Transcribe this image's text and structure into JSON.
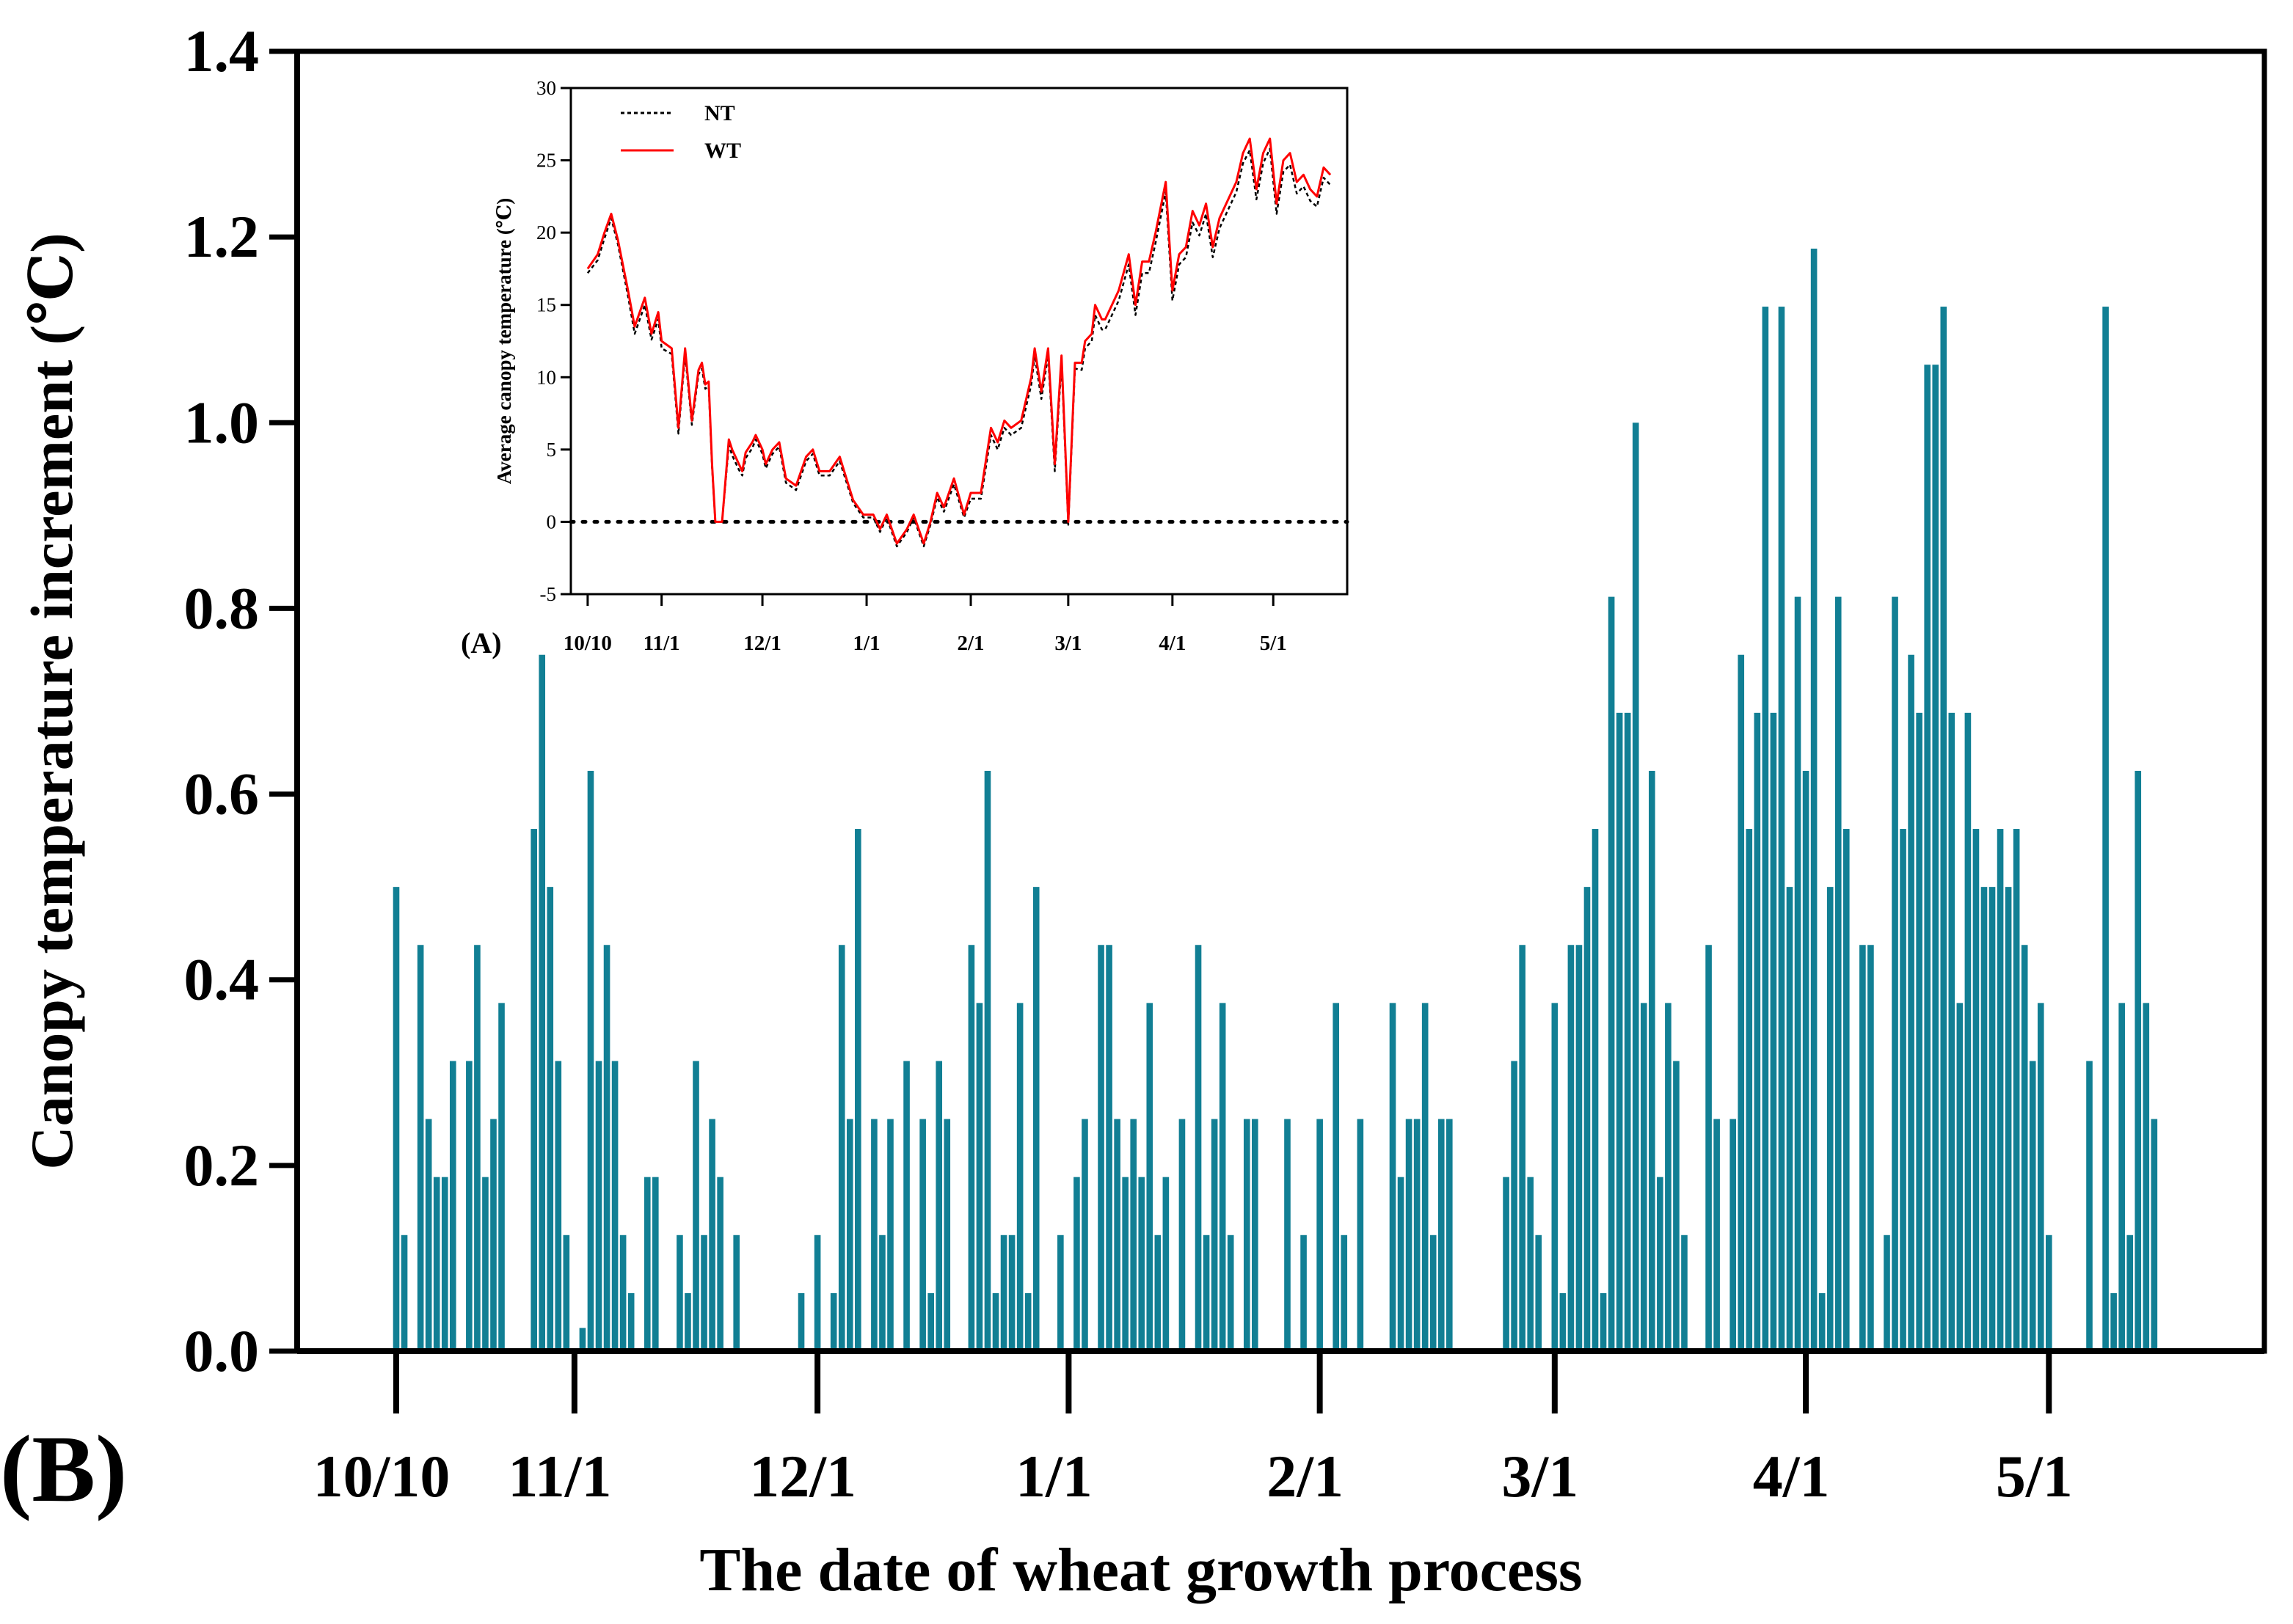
{
  "colors": {
    "bar": "#117f94",
    "nt_line": "#000000",
    "wt_line": "#ff0000",
    "axis": "#000000"
  },
  "chart_data": [
    {
      "id": "B",
      "panel_label": "(B)",
      "type": "bar",
      "title": "",
      "xlabel": "The date of wheat growth process",
      "ylabel": "Canopy temperature increment (℃)",
      "ylim": [
        0,
        1.4
      ],
      "yticks": [
        "0.0",
        "0.2",
        "0.4",
        "0.6",
        "0.8",
        "1.0",
        "1.2",
        "1.4"
      ],
      "ytick_values": [
        0,
        0.2,
        0.4,
        0.6,
        0.8,
        1.0,
        1.2,
        1.4
      ],
      "x_day_range": [
        0,
        221
      ],
      "x_ticks": [
        {
          "label": "10/10",
          "day": 0
        },
        {
          "label": "11/1",
          "day": 22
        },
        {
          "label": "12/1",
          "day": 52
        },
        {
          "label": "1/1",
          "day": 83
        },
        {
          "label": "2/1",
          "day": 114
        },
        {
          "label": "3/1",
          "day": 143
        },
        {
          "label": "4/1",
          "day": 174
        },
        {
          "label": "5/1",
          "day": 204
        }
      ],
      "start_day": 0,
      "values": [
        0.5,
        0.125,
        0,
        0.4375,
        0.25,
        0.1875,
        0.1875,
        0.3125,
        0,
        0.3125,
        0.4375,
        0.1875,
        0.25,
        0.375,
        0,
        0,
        0,
        0.5625,
        0.75,
        0.5,
        0.3125,
        0.125,
        0,
        0.025,
        0.625,
        0.3125,
        0.4375,
        0.3125,
        0.125,
        0.0625,
        0,
        0.1875,
        0.1875,
        0,
        0,
        0.125,
        0.0625,
        0.3125,
        0.125,
        0.25,
        0.1875,
        0,
        0.125,
        0,
        0,
        0,
        0,
        0,
        0,
        0,
        0.0625,
        0,
        0.125,
        0,
        0.0625,
        0.4375,
        0.25,
        0.5625,
        0,
        0.25,
        0.125,
        0.25,
        0,
        0.3125,
        0,
        0.25,
        0.0625,
        0.3125,
        0.25,
        0,
        0,
        0.4375,
        0.375,
        0.625,
        0.0625,
        0.125,
        0.125,
        0.375,
        0.0625,
        0.5,
        0,
        0,
        0.125,
        0,
        0.1875,
        0.25,
        0,
        0.4375,
        0.4375,
        0.25,
        0.1875,
        0.25,
        0.1875,
        0.375,
        0.125,
        0.1875,
        0,
        0.25,
        0,
        0.4375,
        0.125,
        0.25,
        0.375,
        0.125,
        0,
        0.25,
        0.25,
        0,
        0,
        0,
        0.25,
        0,
        0.125,
        0,
        0.25,
        0,
        0.375,
        0.125,
        0,
        0.25,
        0,
        0,
        0,
        0.375,
        0.1875,
        0.25,
        0.25,
        0.375,
        0.125,
        0.25,
        0.25,
        0,
        0,
        0,
        0,
        0,
        0,
        0.1875,
        0.3125,
        0.4375,
        0.1875,
        0.125,
        0,
        0.375,
        0.0625,
        0.4375,
        0.4375,
        0.5,
        0.5625,
        0.0625,
        0.8125,
        0.6875,
        0.6875,
        1.0,
        0.375,
        0.625,
        0.1875,
        0.375,
        0.3125,
        0.125,
        0,
        0,
        0.4375,
        0.25,
        0,
        0.25,
        0.75,
        0.5625,
        0.6875,
        1.125,
        0.6875,
        1.125,
        0.5,
        0.8125,
        0.625,
        1.1875,
        0.0625,
        0.5,
        0.8125,
        0.5625,
        0,
        0.4375,
        0.4375,
        0,
        0.125,
        0.8125,
        0.5625,
        0.75,
        0.6875,
        1.0625,
        1.0625,
        1.125,
        0.6875,
        0.375,
        0.6875,
        0.5625,
        0.5,
        0.5,
        0.5625,
        0.5,
        0.5625,
        0.4375,
        0.3125,
        0.375,
        0.125,
        0,
        0,
        0,
        0,
        0.3125,
        0,
        1.125,
        0.0625,
        0.375,
        0.125,
        0.625,
        0.375,
        0.25
      ]
    },
    {
      "id": "A",
      "panel_label": "(A)",
      "type": "line",
      "title": "",
      "xlabel": "",
      "ylabel": "Average canopy temperature (℃)",
      "ylim": [
        -5,
        30
      ],
      "yticks": [
        "-5",
        "0",
        "5",
        "10",
        "15",
        "20",
        "25",
        "30"
      ],
      "ytick_values": [
        -5,
        0,
        5,
        10,
        15,
        20,
        25,
        30
      ],
      "x_day_range": [
        -5,
        226
      ],
      "x_ticks": [
        {
          "label": "10/10",
          "day": 0
        },
        {
          "label": "11/1",
          "day": 22
        },
        {
          "label": "12/1",
          "day": 52
        },
        {
          "label": "1/1",
          "day": 83
        },
        {
          "label": "2/1",
          "day": 114
        },
        {
          "label": "3/1",
          "day": 143
        },
        {
          "label": "4/1",
          "day": 174
        },
        {
          "label": "5/1",
          "day": 204
        }
      ],
      "reference_line": 0,
      "legend": [
        "NT",
        "WT"
      ],
      "legend_position": "top-left",
      "series": [
        {
          "name": "WT",
          "x": [
            0,
            3,
            5,
            7,
            9,
            12,
            14,
            17,
            19,
            21,
            22,
            25,
            27,
            29,
            31,
            33,
            34,
            35,
            36,
            37,
            38,
            40,
            42,
            43,
            45,
            46,
            47,
            49,
            50,
            52,
            53,
            55,
            57,
            59,
            62,
            65,
            67,
            69,
            72,
            75,
            79,
            82,
            85,
            87,
            89,
            92,
            95,
            97,
            100,
            102,
            104,
            106,
            109,
            112,
            114,
            117,
            120,
            122,
            124,
            126,
            129,
            132,
            133,
            135,
            137,
            139,
            141,
            143,
            145,
            147,
            148,
            150,
            151,
            153,
            154,
            156,
            158,
            161,
            163,
            165,
            167,
            169,
            172,
            174,
            176,
            178,
            180,
            182,
            184,
            186,
            188,
            190,
            193,
            195,
            197,
            199,
            201,
            203,
            205,
            207,
            209,
            211,
            213,
            215,
            217,
            219,
            221
          ],
          "values": [
            17.5,
            18.5,
            20,
            21.3,
            19.5,
            16,
            13.5,
            15.5,
            13,
            14.5,
            12.5,
            12,
            6.5,
            12,
            7,
            10.5,
            11,
            9.5,
            9.7,
            4,
            0,
            0,
            5.7,
            5,
            4,
            3.5,
            4.8,
            5.5,
            6,
            5,
            4,
            5,
            5.5,
            3,
            2.5,
            4.5,
            5,
            3.5,
            3.5,
            4.5,
            1.5,
            0.5,
            0.5,
            -0.5,
            0.5,
            -1.5,
            -0.5,
            0.5,
            -1.5,
            0,
            2,
            1,
            3,
            0.5,
            2,
            2,
            6.5,
            5.5,
            7,
            6.5,
            7,
            10,
            12,
            9,
            12,
            4,
            11.5,
            0,
            11,
            11,
            12.5,
            13,
            15,
            14,
            14,
            15,
            16,
            18.5,
            15,
            18,
            18,
            20,
            23.5,
            16,
            18.5,
            19,
            21.5,
            20.5,
            22,
            19,
            21,
            22,
            23.5,
            25.5,
            26.5,
            23,
            25.5,
            26.5,
            22,
            25,
            25.5,
            23.5,
            24,
            23,
            22.5,
            24.5,
            24
          ]
        },
        {
          "name": "NT",
          "x": [
            0,
            3,
            5,
            7,
            9,
            12,
            14,
            17,
            19,
            21,
            22,
            25,
            27,
            29,
            31,
            33,
            34,
            35,
            36,
            37,
            38,
            40,
            42,
            43,
            45,
            46,
            47,
            49,
            50,
            52,
            53,
            55,
            57,
            59,
            62,
            65,
            67,
            69,
            72,
            75,
            79,
            82,
            85,
            87,
            89,
            92,
            95,
            97,
            100,
            102,
            104,
            106,
            109,
            112,
            114,
            117,
            120,
            122,
            124,
            126,
            129,
            132,
            133,
            135,
            137,
            139,
            141,
            143,
            145,
            147,
            148,
            150,
            151,
            153,
            154,
            156,
            158,
            161,
            163,
            165,
            167,
            169,
            172,
            174,
            176,
            178,
            180,
            182,
            184,
            186,
            188,
            190,
            193,
            195,
            197,
            199,
            201,
            203,
            205,
            207,
            209,
            211,
            213,
            215,
            217,
            219,
            221
          ],
          "values": [
            17.2,
            18.1,
            19.6,
            21,
            19.2,
            15.6,
            13,
            15,
            12.6,
            14,
            12,
            11.6,
            6.1,
            11.6,
            6.7,
            10.2,
            10.6,
            9.2,
            9.4,
            3.8,
            0,
            0,
            5.3,
            4.6,
            3.6,
            3.2,
            4.4,
            5.1,
            5.7,
            4.7,
            3.7,
            4.7,
            5.2,
            2.7,
            2.2,
            4.2,
            4.7,
            3.2,
            3.2,
            4.2,
            1.3,
            0.3,
            0.3,
            -0.7,
            0.3,
            -1.7,
            -0.7,
            0.3,
            -1.7,
            -0.2,
            1.7,
            0.7,
            2.6,
            0.3,
            1.6,
            1.6,
            6,
            5,
            6.5,
            6,
            6.5,
            9.5,
            11.5,
            8.5,
            11.5,
            3.5,
            11,
            -0.2,
            10.6,
            10.5,
            12,
            12.5,
            14.3,
            13.3,
            13.3,
            14.3,
            15.3,
            17.8,
            14.3,
            17.2,
            17.2,
            19.3,
            22.8,
            15.3,
            17.8,
            18.3,
            20.7,
            19.8,
            21.3,
            18.3,
            20.3,
            21.3,
            22.8,
            24.8,
            25.7,
            22.3,
            24.8,
            25.8,
            21.3,
            24.2,
            24.7,
            22.7,
            23.2,
            22.2,
            21.8,
            23.8,
            23.3
          ]
        }
      ]
    }
  ]
}
